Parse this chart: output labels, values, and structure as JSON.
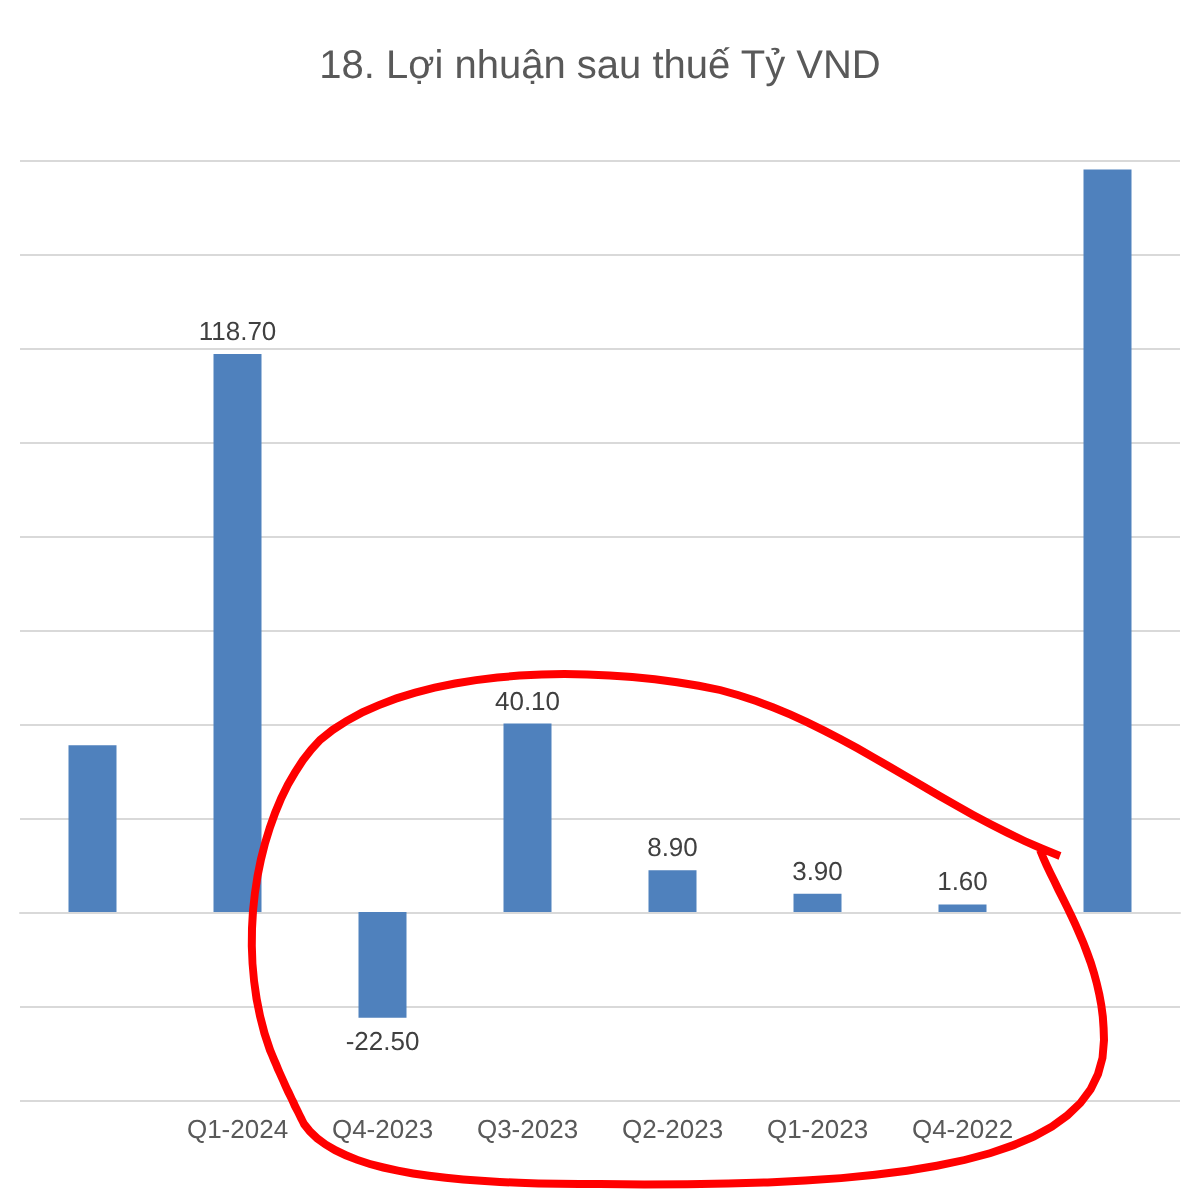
{
  "chart_data": {
    "type": "bar",
    "title": "18. Lợi nhuận sau thuế Tỷ VND",
    "categories": [
      null,
      "Q1-2024",
      "Q4-2023",
      "Q3-2023",
      "Q2-2023",
      "Q1-2023",
      "Q4-2022",
      null
    ],
    "values": [
      35.5,
      118.7,
      -22.5,
      40.1,
      8.9,
      3.9,
      1.6,
      158
    ],
    "value_labels": [
      null,
      "118.70",
      "-22.50",
      "40.10",
      "8.90",
      "3.90",
      "1.60",
      null
    ],
    "color": "#4f81bd",
    "ylim": [
      -40,
      160
    ],
    "yticks": [
      {
        "value": -40,
        "label": null
      },
      {
        "value": -20,
        "label": null
      },
      {
        "value": 0,
        "label": null
      },
      {
        "value": 20,
        "label": null
      },
      {
        "value": 40,
        "label": null
      },
      {
        "value": 60,
        "label": null
      },
      {
        "value": 80,
        "label": null
      },
      {
        "value": 100,
        "label": null
      },
      {
        "value": 120,
        "label": null
      },
      {
        "value": 140,
        "label": null
      },
      {
        "value": 160,
        "label": null
      }
    ],
    "tick_labels": "x",
    "grid": "y"
  }
}
